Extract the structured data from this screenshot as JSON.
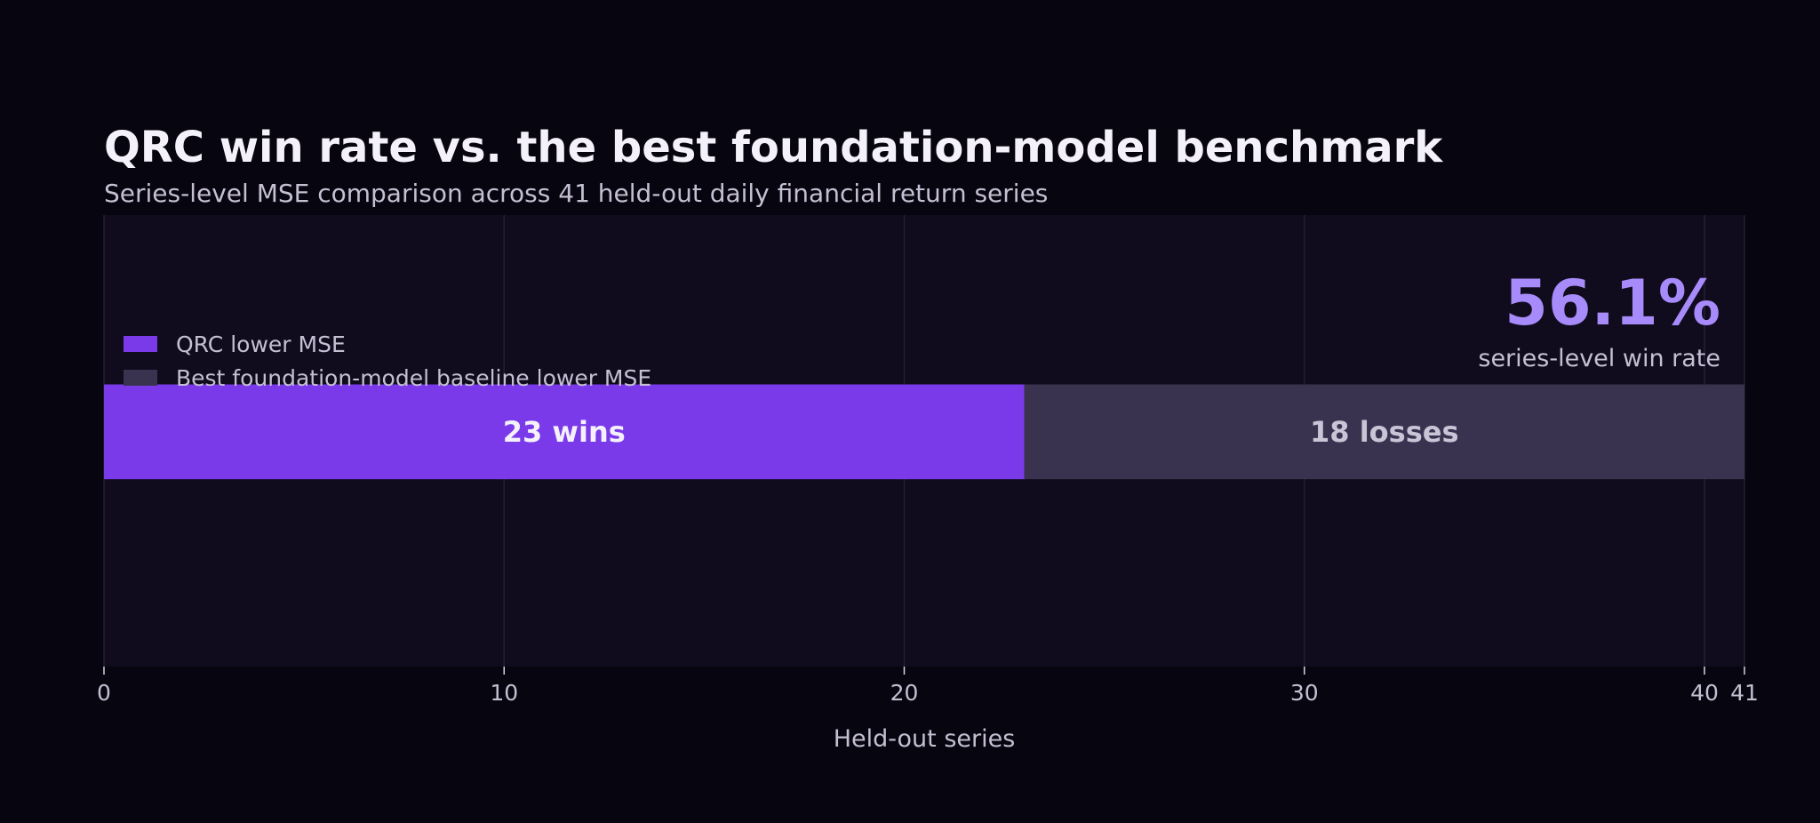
{
  "chart_data": {
    "type": "bar",
    "orientation": "horizontal",
    "stacked": true,
    "title": "QRC win rate vs. the best foundation-model benchmark",
    "subtitle": "Series-level MSE comparison across 41 held-out daily financial return series",
    "xlabel": "Held-out series",
    "ylabel": "",
    "xlim": [
      0,
      41
    ],
    "xticks": [
      0,
      10,
      20,
      30,
      40,
      41
    ],
    "grid": true,
    "legend_placement": "upper-left",
    "series": [
      {
        "name": "QRC lower MSE",
        "value": 23,
        "label": "23 wins",
        "color": "#7a3aea",
        "label_color": "#f4f1fb"
      },
      {
        "name": "Best foundation-model baseline lower MSE",
        "value": 18,
        "label": "18 losses",
        "color": "#3a3350",
        "label_color": "#c9c4d6"
      }
    ],
    "kpi": {
      "value": "56.1%",
      "caption": "series-level win rate",
      "color": "#a78bfa"
    }
  },
  "colors": {
    "background": "#07050f",
    "plot_background": "#100c1d",
    "grid": "#241f35",
    "title": "#f4f1fb",
    "muted_text": "#c4bfd2",
    "tick_mark": "#d7d3e2"
  }
}
